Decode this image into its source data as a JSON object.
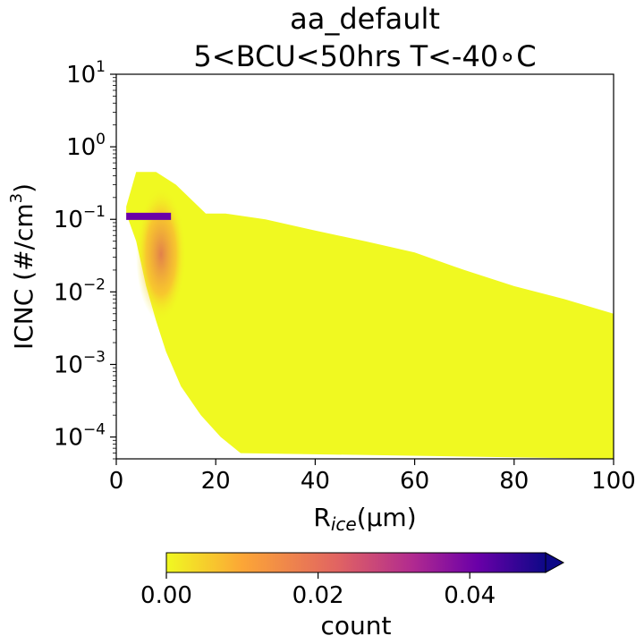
{
  "chart_data": {
    "type": "heatmap",
    "title_line1": "aa_default",
    "title_line2": "5<BCU<50hrs T<-40∘C",
    "xlabel": {
      "main": "R",
      "sub": "ice",
      "rest": "(μm)"
    },
    "ylabel": {
      "main": "ICNC (#/cm",
      "sup": "3",
      "close": ")"
    },
    "xlim": [
      0,
      100
    ],
    "ylim": [
      5e-05,
      10
    ],
    "yscale": "log",
    "xticks": [
      0,
      20,
      40,
      60,
      80,
      100
    ],
    "xtick_labels": [
      "0",
      "20",
      "40",
      "60",
      "80",
      "100"
    ],
    "yticks": [
      {
        "value": 0.0001,
        "base": "10",
        "exp": "−4"
      },
      {
        "value": 0.001,
        "base": "10",
        "exp": "−3"
      },
      {
        "value": 0.01,
        "base": "10",
        "exp": "−2"
      },
      {
        "value": 0.1,
        "base": "10",
        "exp": "−1"
      },
      {
        "value": 1,
        "base": "10",
        "exp": "0"
      },
      {
        "value": 10,
        "base": "10",
        "exp": "1"
      }
    ],
    "colorbar": {
      "label": "count",
      "colormap": "plasma_r",
      "range": [
        0,
        0.05
      ],
      "extend": "max",
      "ticks": [
        0,
        0.02,
        0.04
      ],
      "tick_labels": [
        "0.00",
        "0.02",
        "0.04"
      ],
      "colors": [
        "#f0f921",
        "#fca636",
        "#e16462",
        "#b12a90",
        "#6a00a8",
        "#0d0887"
      ]
    },
    "density_peak": {
      "x": 8,
      "y": 0.11,
      "value": 0.05
    },
    "filled_region": {
      "top_boundary": [
        {
          "x": 2,
          "y": 0.15
        },
        {
          "x": 4,
          "y": 0.45
        },
        {
          "x": 8,
          "y": 0.45
        },
        {
          "x": 12,
          "y": 0.3
        },
        {
          "x": 18,
          "y": 0.12
        },
        {
          "x": 22,
          "y": 0.12
        },
        {
          "x": 30,
          "y": 0.1
        },
        {
          "x": 40,
          "y": 0.07
        },
        {
          "x": 50,
          "y": 0.05
        },
        {
          "x": 60,
          "y": 0.035
        },
        {
          "x": 70,
          "y": 0.02
        },
        {
          "x": 80,
          "y": 0.012
        },
        {
          "x": 90,
          "y": 0.008
        },
        {
          "x": 100,
          "y": 0.005
        }
      ],
      "bottom_boundary": [
        {
          "x": 2,
          "y": 0.12
        },
        {
          "x": 4,
          "y": 0.05
        },
        {
          "x": 6,
          "y": 0.012
        },
        {
          "x": 8,
          "y": 0.004
        },
        {
          "x": 10,
          "y": 0.0015
        },
        {
          "x": 13,
          "y": 0.0005
        },
        {
          "x": 17,
          "y": 0.0002
        },
        {
          "x": 21,
          "y": 0.0001
        },
        {
          "x": 25,
          "y": 6e-05
        },
        {
          "x": 100,
          "y": 5e-05
        }
      ]
    }
  }
}
